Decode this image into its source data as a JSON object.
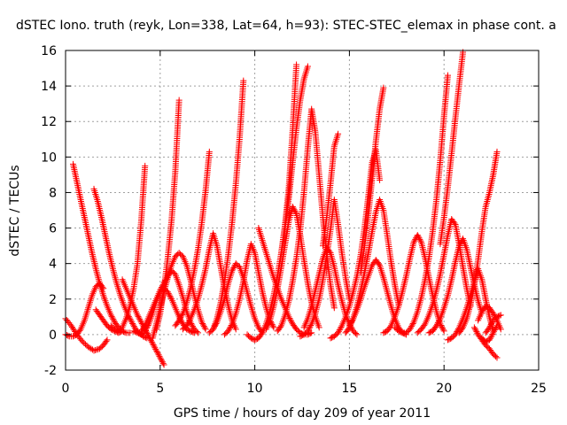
{
  "chart_data": {
    "type": "scatter",
    "title": "dSTEC Iono. truth (reyk, Lon=338, Lat=64, h=93): STEC-STEC_elemax in phase cont. a",
    "xlabel": "GPS time / hours of day 209 of year 2011",
    "ylabel": "dSTEC  / TECUs",
    "xlim": [
      0,
      25
    ],
    "ylim": [
      -2,
      16
    ],
    "xticks": [
      "0",
      "5",
      "10",
      "15",
      "20",
      "25"
    ],
    "yticks": [
      "-2",
      "0",
      "2",
      "4",
      "6",
      "8",
      "10",
      "12",
      "14",
      "16"
    ],
    "grid": true,
    "marker": "+",
    "color": "#ff0000",
    "series": [
      {
        "x": [
          0.0,
          0.3,
          0.6,
          0.9,
          1.2,
          1.5,
          1.8,
          2.0,
          2.2
        ],
        "y": [
          0.9,
          0.5,
          0.0,
          -0.4,
          -0.7,
          -0.9,
          -0.8,
          -0.6,
          -0.3
        ]
      },
      {
        "x": [
          0.4,
          0.6,
          0.8,
          1.0,
          1.2,
          1.4,
          1.6,
          1.8,
          2.0,
          2.2,
          2.4,
          2.6,
          2.8,
          3.0,
          3.2,
          3.4
        ],
        "y": [
          9.6,
          8.6,
          7.6,
          6.6,
          5.6,
          4.6,
          3.7,
          2.9,
          2.2,
          1.6,
          1.1,
          0.7,
          0.4,
          0.2,
          0.1,
          0.1
        ]
      },
      {
        "x": [
          0.0,
          0.2,
          0.4,
          0.6,
          0.8,
          1.0,
          1.2,
          1.4,
          1.6,
          1.8,
          2.0
        ],
        "y": [
          0.0,
          -0.1,
          -0.1,
          0.0,
          0.3,
          0.8,
          1.5,
          2.2,
          2.7,
          2.9,
          2.6
        ]
      },
      {
        "x": [
          1.5,
          1.7,
          1.9,
          2.1,
          2.3,
          2.5,
          2.7,
          2.9,
          3.1,
          3.3,
          3.5,
          3.7,
          3.9,
          4.1,
          4.3
        ],
        "y": [
          8.2,
          7.5,
          6.6,
          5.6,
          4.6,
          3.7,
          2.9,
          2.2,
          1.6,
          1.1,
          0.7,
          0.3,
          0.1,
          -0.1,
          -0.2
        ]
      },
      {
        "x": [
          1.6,
          1.8,
          2.0,
          2.2,
          2.4,
          2.6,
          2.8,
          3.0
        ],
        "y": [
          1.4,
          1.1,
          0.8,
          0.5,
          0.3,
          0.2,
          0.1,
          0.2
        ]
      },
      {
        "x": [
          2.4,
          2.6,
          2.8,
          3.0,
          3.2,
          3.4,
          3.6,
          3.8,
          4.0,
          4.2
        ],
        "y": [
          0.5,
          0.3,
          0.2,
          0.4,
          0.9,
          1.6,
          2.6,
          4.0,
          6.4,
          9.5
        ]
      },
      {
        "x": [
          3.0,
          3.2,
          3.4,
          3.6,
          3.8,
          4.0,
          4.2,
          4.4,
          4.6,
          4.8,
          5.0,
          5.2
        ],
        "y": [
          3.1,
          2.6,
          2.1,
          1.6,
          1.1,
          0.7,
          0.3,
          -0.1,
          -0.5,
          -0.9,
          -1.3,
          -1.7
        ]
      },
      {
        "x": [
          4.0,
          4.2,
          4.4,
          4.6,
          4.8,
          5.0,
          5.2,
          5.4,
          5.6,
          5.8,
          6.0,
          6.2,
          6.4,
          6.6,
          6.8,
          7.0
        ],
        "y": [
          0.2,
          0.5,
          1.0,
          1.5,
          2.0,
          2.5,
          2.9,
          3.3,
          3.6,
          3.4,
          2.8,
          2.1,
          1.3,
          0.7,
          0.3,
          0.1
        ]
      },
      {
        "x": [
          3.6,
          3.8,
          4.0,
          4.2,
          4.4,
          4.6,
          4.8,
          5.0,
          5.2,
          5.4,
          5.6,
          5.8,
          6.0,
          6.2,
          6.4,
          6.6,
          6.8
        ],
        "y": [
          0.2,
          0.1,
          0.0,
          0.2,
          0.6,
          1.2,
          1.9,
          2.4,
          2.6,
          2.4,
          2.0,
          1.5,
          1.0,
          0.6,
          0.3,
          0.2,
          0.1
        ]
      },
      {
        "x": [
          4.8,
          5.0,
          5.2,
          5.4,
          5.6,
          5.8,
          6.0
        ],
        "y": [
          0.3,
          1.2,
          2.6,
          4.3,
          6.4,
          9.2,
          13.2
        ]
      },
      {
        "x": [
          4.6,
          4.8,
          5.0,
          5.2,
          5.4,
          5.6,
          5.8,
          6.0,
          6.2,
          6.4,
          6.6,
          6.8,
          7.0,
          7.2,
          7.4
        ],
        "y": [
          -0.2,
          0.6,
          1.5,
          2.4,
          3.2,
          3.9,
          4.4,
          4.6,
          4.4,
          3.9,
          3.1,
          2.2,
          1.4,
          0.7,
          0.3
        ]
      },
      {
        "x": [
          5.8,
          6.0,
          6.2,
          6.4,
          6.6,
          6.8,
          7.0,
          7.2,
          7.4,
          7.6
        ],
        "y": [
          0.5,
          0.8,
          1.2,
          1.8,
          2.6,
          3.6,
          4.8,
          6.3,
          8.1,
          10.3
        ]
      },
      {
        "x": [
          6.2,
          6.4,
          6.6,
          6.8,
          7.0,
          7.2,
          7.4,
          7.6,
          7.8,
          8.0,
          8.2,
          8.4,
          8.6,
          8.8,
          9.0
        ],
        "y": [
          0.3,
          0.5,
          0.9,
          1.4,
          2.0,
          2.8,
          3.7,
          4.8,
          5.7,
          5.0,
          3.8,
          2.6,
          1.6,
          0.8,
          0.3
        ]
      },
      {
        "x": [
          7.6,
          7.8,
          8.0,
          8.2,
          8.4,
          8.6,
          8.8,
          9.0,
          9.2,
          9.4,
          9.6,
          9.8,
          10.0,
          10.2,
          10.4
        ],
        "y": [
          0.1,
          0.3,
          0.7,
          1.3,
          2.0,
          2.9,
          3.6,
          4.0,
          3.8,
          3.2,
          2.4,
          1.6,
          0.9,
          0.4,
          0.1
        ]
      },
      {
        "x": [
          7.8,
          8.0,
          8.2,
          8.4,
          8.6,
          8.8,
          9.0,
          9.2,
          9.4
        ],
        "y": [
          0.3,
          0.9,
          1.8,
          3.0,
          4.5,
          6.3,
          8.5,
          11.1,
          14.3
        ]
      },
      {
        "x": [
          8.4,
          8.6,
          8.8,
          9.0,
          9.2,
          9.4,
          9.6,
          9.8,
          10.0,
          10.2,
          10.4,
          10.6,
          10.8,
          11.0
        ],
        "y": [
          0.0,
          0.2,
          0.6,
          1.2,
          2.0,
          3.0,
          4.2,
          5.1,
          4.6,
          3.5,
          2.4,
          1.5,
          0.8,
          0.4
        ]
      },
      {
        "x": [
          9.6,
          9.8,
          10.0,
          10.2,
          10.4,
          10.6,
          10.8,
          11.0,
          11.2,
          11.4,
          11.6,
          11.8,
          12.0,
          12.2
        ],
        "y": [
          0.0,
          -0.2,
          -0.3,
          -0.2,
          0.1,
          0.6,
          1.3,
          2.2,
          3.3,
          4.6,
          6.2,
          8.3,
          11.5,
          15.2
        ]
      },
      {
        "x": [
          10.2,
          10.4,
          10.6,
          10.8,
          11.0,
          11.2,
          11.4,
          11.6,
          11.8,
          12.0,
          12.2,
          12.4,
          12.6,
          12.8,
          13.0
        ],
        "y": [
          6.0,
          5.3,
          4.6,
          3.9,
          3.2,
          2.6,
          2.0,
          1.5,
          1.0,
          0.6,
          0.3,
          0.1,
          0.0,
          0.0,
          0.1
        ]
      },
      {
        "x": [
          10.6,
          10.8,
          11.0,
          11.2,
          11.4,
          11.6,
          11.8,
          12.0,
          12.2,
          12.4,
          12.6,
          12.8,
          13.0,
          13.2,
          13.4
        ],
        "y": [
          0.3,
          0.8,
          1.6,
          2.6,
          3.8,
          5.1,
          6.4,
          7.2,
          6.8,
          5.6,
          4.2,
          2.9,
          1.8,
          1.0,
          0.4
        ]
      },
      {
        "x": [
          11.2,
          11.4,
          11.6,
          11.8,
          12.0,
          12.2,
          12.4,
          12.6,
          12.8,
          13.0,
          13.2,
          13.4,
          13.6,
          13.8,
          14.0,
          14.2
        ],
        "y": [
          0.2,
          0.5,
          1.1,
          1.9,
          3.0,
          4.3,
          5.9,
          8.0,
          10.5,
          12.7,
          11.4,
          9.0,
          6.6,
          4.5,
          2.8,
          1.5
        ]
      },
      {
        "x": [
          11.4,
          11.6,
          11.8,
          12.0,
          12.2,
          12.4,
          12.6,
          12.8
        ],
        "y": [
          4.6,
          6.0,
          7.7,
          9.7,
          11.6,
          13.2,
          14.4,
          15.1
        ]
      },
      {
        "x": [
          12.4,
          12.6,
          12.8,
          13.0,
          13.2,
          13.4,
          13.6,
          13.8,
          14.0,
          14.2,
          14.4,
          14.6,
          14.8,
          15.0
        ],
        "y": [
          -0.1,
          0.0,
          0.2,
          0.6,
          1.2,
          2.0,
          3.1,
          4.4,
          5.9,
          7.6,
          6.2,
          4.6,
          3.2,
          2.0
        ]
      },
      {
        "x": [
          12.6,
          12.8,
          13.0,
          13.2,
          13.4,
          13.6,
          13.8,
          14.0,
          14.2,
          14.4,
          14.6,
          14.8,
          15.0,
          15.2,
          15.4
        ],
        "y": [
          0.4,
          0.9,
          1.6,
          2.5,
          3.4,
          4.3,
          4.9,
          4.6,
          3.8,
          2.8,
          1.9,
          1.1,
          0.6,
          0.2,
          0.0
        ]
      },
      {
        "x": [
          13.6,
          13.8,
          14.0,
          14.2,
          14.4
        ],
        "y": [
          5.0,
          6.6,
          8.5,
          10.6,
          11.3
        ]
      },
      {
        "x": [
          14.0,
          14.2,
          14.4,
          14.6,
          14.8,
          15.0,
          15.2,
          15.4,
          15.6,
          15.8,
          16.0,
          16.2,
          16.4,
          16.6
        ],
        "y": [
          -0.2,
          -0.1,
          0.1,
          0.5,
          1.0,
          1.6,
          2.4,
          3.3,
          4.5,
          6.0,
          7.8,
          9.7,
          10.4,
          8.7
        ]
      },
      {
        "x": [
          14.8,
          15.0,
          15.2,
          15.4,
          15.6,
          15.8,
          16.0,
          16.2,
          16.4,
          16.6,
          16.8,
          17.0,
          17.2,
          17.4,
          17.6
        ],
        "y": [
          0.1,
          0.4,
          0.9,
          1.6,
          2.5,
          3.5,
          4.6,
          5.8,
          6.9,
          7.6,
          7.0,
          5.6,
          4.1,
          2.8,
          1.7
        ]
      },
      {
        "x": [
          15.0,
          15.2,
          15.4,
          15.6,
          15.8,
          16.0,
          16.2,
          16.4,
          16.6,
          16.8,
          17.0,
          17.2,
          17.4,
          17.6,
          17.8,
          18.0
        ],
        "y": [
          0.5,
          0.9,
          1.4,
          2.0,
          2.7,
          3.3,
          3.9,
          4.2,
          3.9,
          3.2,
          2.4,
          1.6,
          0.9,
          0.4,
          0.1,
          0.0
        ]
      },
      {
        "x": [
          15.6,
          15.8,
          16.0,
          16.2,
          16.4,
          16.6,
          16.8
        ],
        "y": [
          3.5,
          5.0,
          6.8,
          8.8,
          10.9,
          12.7,
          13.9
        ]
      },
      {
        "x": [
          16.8,
          17.0,
          17.2,
          17.4,
          17.6,
          17.8,
          18.0,
          18.2,
          18.4,
          18.6,
          18.8,
          19.0,
          19.2,
          19.4,
          19.6,
          19.8,
          20.0
        ],
        "y": [
          0.1,
          0.2,
          0.5,
          1.0,
          1.6,
          2.4,
          3.3,
          4.3,
          5.2,
          5.6,
          5.2,
          4.3,
          3.2,
          2.2,
          1.3,
          0.6,
          0.2
        ]
      },
      {
        "x": [
          17.4,
          17.6,
          17.8,
          18.0,
          18.2,
          18.4,
          18.6,
          18.8,
          19.0,
          19.2,
          19.4,
          19.6,
          19.8,
          20.0,
          20.2
        ],
        "y": [
          0.4,
          0.2,
          0.1,
          0.1,
          0.3,
          0.7,
          1.3,
          2.1,
          3.1,
          4.3,
          5.8,
          7.6,
          9.8,
          12.3,
          14.6
        ]
      },
      {
        "x": [
          18.6,
          18.8,
          19.0,
          19.2,
          19.4,
          19.6,
          19.8,
          20.0,
          20.2,
          20.4,
          20.6,
          20.8,
          21.0,
          21.2,
          21.4
        ],
        "y": [
          0.1,
          0.3,
          0.6,
          1.1,
          1.7,
          2.5,
          3.4,
          4.5,
          5.6,
          6.5,
          6.2,
          5.1,
          3.8,
          2.6,
          1.6
        ]
      },
      {
        "x": [
          19.2,
          19.4,
          19.6,
          19.8,
          20.0,
          20.2,
          20.4,
          20.6,
          20.8,
          21.0,
          21.2,
          21.4,
          21.6,
          21.8,
          22.0
        ],
        "y": [
          0.1,
          0.2,
          0.5,
          0.9,
          1.5,
          2.2,
          3.1,
          4.1,
          5.0,
          5.4,
          4.8,
          3.8,
          2.8,
          1.9,
          1.2
        ]
      },
      {
        "x": [
          19.8,
          20.0,
          20.2,
          20.4,
          20.6,
          20.8,
          21.0
        ],
        "y": [
          5.1,
          6.6,
          8.3,
          10.2,
          12.2,
          14.1,
          15.9
        ]
      },
      {
        "x": [
          20.8,
          21.0,
          21.2,
          21.4,
          21.6,
          21.8,
          22.0,
          22.2,
          22.4,
          22.6,
          22.8
        ],
        "y": [
          0.1,
          0.4,
          0.9,
          1.7,
          2.8,
          4.2,
          5.8,
          7.2,
          8.0,
          9.0,
          10.3
        ]
      },
      {
        "x": [
          20.2,
          20.4,
          20.6,
          20.8,
          21.0,
          21.2,
          21.4,
          21.6,
          21.8,
          22.0,
          22.2,
          22.4,
          22.6
        ],
        "y": [
          -0.3,
          -0.2,
          0.0,
          0.4,
          0.9,
          1.5,
          2.2,
          3.0,
          3.7,
          3.1,
          2.0,
          1.0,
          0.2
        ]
      },
      {
        "x": [
          21.6,
          21.8,
          22.0,
          22.2,
          22.4,
          22.6,
          22.8
        ],
        "y": [
          0.4,
          0.0,
          -0.3,
          -0.6,
          -0.8,
          -1.1,
          -1.3
        ]
      },
      {
        "x": [
          21.8,
          22.0,
          22.2,
          22.4,
          22.6,
          22.8,
          23.0
        ],
        "y": [
          0.8,
          1.3,
          1.6,
          1.5,
          1.2,
          0.8,
          0.3
        ]
      },
      {
        "x": [
          22.0,
          22.2,
          22.4,
          22.6,
          22.8
        ],
        "y": [
          -0.2,
          -0.4,
          -0.3,
          0.1,
          0.5
        ]
      },
      {
        "x": [
          22.2,
          22.4,
          22.6,
          22.8,
          23.0
        ],
        "y": [
          0.1,
          0.4,
          0.8,
          1.0,
          1.1
        ]
      }
    ]
  }
}
